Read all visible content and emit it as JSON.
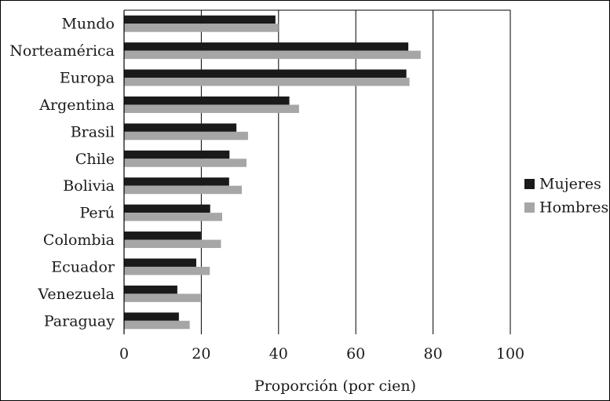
{
  "chart_data": {
    "type": "bar",
    "orientation": "horizontal",
    "categories": [
      "Mundo",
      "Norteamérica",
      "Europa",
      "Argentina",
      "Brasil",
      "Chile",
      "Bolivia",
      "Perú",
      "Colombia",
      "Ecuador",
      "Venezuela",
      "Paraguay"
    ],
    "series": [
      {
        "name": "Mujeres",
        "color": "#1a1a1a",
        "values": [
          39.2,
          73.6,
          73.1,
          42.8,
          29.1,
          27.3,
          27.2,
          22.3,
          19.9,
          18.7,
          13.8,
          14.2
        ]
      },
      {
        "name": "Hombres",
        "color": "#a6a6a6",
        "values": [
          40.0,
          76.8,
          73.9,
          45.3,
          32.1,
          31.7,
          30.5,
          25.4,
          25.1,
          22.2,
          19.8,
          17.0
        ]
      }
    ],
    "xlabel": "Proporción (por cien)",
    "ylabel": "",
    "xlim": [
      0,
      100
    ],
    "xticks": [
      "0",
      "20",
      "40",
      "60",
      "80",
      "100"
    ],
    "grid": "vertical",
    "legend_position": "right"
  }
}
